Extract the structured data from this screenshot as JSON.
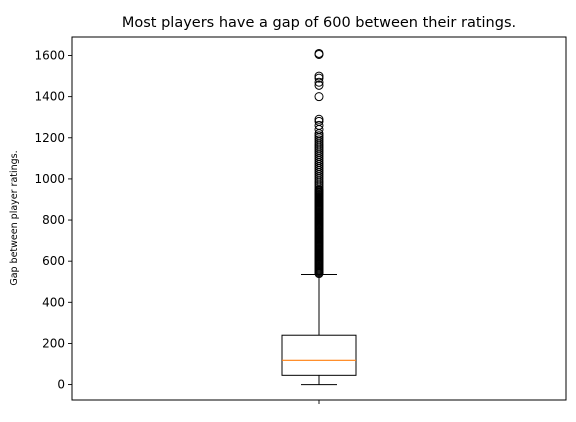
{
  "chart_data": {
    "type": "boxplot",
    "title": "Most players have a gap of 600 between their ratings.",
    "xlabel": "",
    "ylabel": "Gap between player ratings.",
    "ylim": [
      -75,
      1690
    ],
    "yticks": [
      0,
      200,
      400,
      600,
      800,
      1000,
      1200,
      1400,
      1600
    ],
    "grid": false,
    "legend": "none",
    "box": {
      "whisker_low": 0,
      "q1": 45,
      "median": 118,
      "q3": 240,
      "whisker_high": 535
    },
    "outliers": [
      540,
      545,
      550,
      555,
      560,
      565,
      570,
      575,
      580,
      585,
      590,
      595,
      600,
      605,
      610,
      615,
      620,
      625,
      630,
      635,
      640,
      645,
      650,
      655,
      660,
      665,
      670,
      675,
      680,
      685,
      690,
      695,
      700,
      705,
      710,
      715,
      720,
      725,
      730,
      735,
      740,
      745,
      750,
      755,
      760,
      765,
      770,
      775,
      780,
      785,
      790,
      795,
      800,
      805,
      810,
      815,
      820,
      825,
      830,
      835,
      840,
      845,
      850,
      855,
      860,
      865,
      870,
      875,
      880,
      885,
      890,
      895,
      900,
      905,
      910,
      915,
      920,
      925,
      930,
      935,
      940,
      945,
      950,
      960,
      970,
      980,
      990,
      1000,
      1010,
      1020,
      1030,
      1040,
      1050,
      1060,
      1070,
      1080,
      1090,
      1100,
      1110,
      1120,
      1130,
      1140,
      1150,
      1160,
      1170,
      1180,
      1190,
      1200,
      1210,
      1220,
      1240,
      1260,
      1280,
      1290,
      1400,
      1455,
      1470,
      1490,
      1500,
      1605,
      1610
    ],
    "colors": {
      "median": "#ff7f0e",
      "box": "#000000",
      "outlier": "#000000"
    }
  }
}
